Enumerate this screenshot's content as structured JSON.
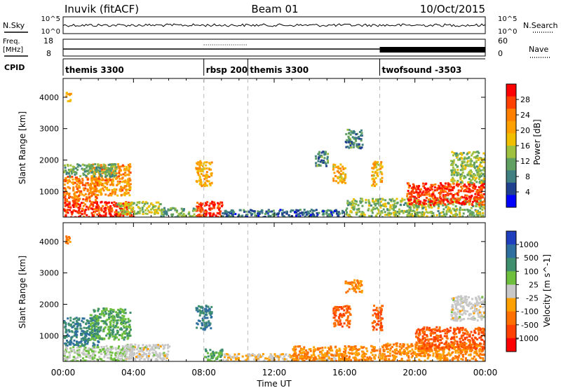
{
  "header": {
    "station": "Inuvik (fitACF)",
    "beam": "Beam 01",
    "date": "10/Oct/2015"
  },
  "top_panels": {
    "nsky_label": "N.Sky",
    "nsearch_label": "N.Search",
    "nsky_ticks": [
      "10^5",
      "10^0"
    ],
    "freq_label_top": "Freq.",
    "freq_label_unit": "[MHz]",
    "freq_ticks": [
      "18",
      "8"
    ],
    "nave_label": "Nave",
    "nave_ticks": [
      "60",
      "0"
    ],
    "cpid_label": "CPID",
    "cpid_segments": [
      {
        "name": "themis 3300",
        "start_h": 0.0,
        "end_h": 8.0
      },
      {
        "name": "rbsp 200",
        "start_h": 8.0,
        "end_h": 10.5
      },
      {
        "name": "themis 3300",
        "start_h": 10.5,
        "end_h": 18.0
      },
      {
        "name": "twofsound -3503",
        "start_h": 18.0,
        "end_h": 24.0
      }
    ]
  },
  "axes": {
    "x_ticks": [
      "00:00",
      "04:00",
      "08:00",
      "12:00",
      "16:00",
      "20:00",
      "00:00"
    ],
    "xlabel": "Time UT",
    "ylabel": "Slant Range [km]",
    "y_ticks": [
      "1000",
      "2000",
      "3000",
      "4000"
    ]
  },
  "power_colorbar": {
    "label": "Power [dB]",
    "ticks": [
      "28",
      "24",
      "20",
      "16",
      "12",
      "8",
      "4"
    ],
    "colors": [
      "#ff0000",
      "#ff4000",
      "#ff7f00",
      "#ffa000",
      "#f0c000",
      "#a0c040",
      "#60a060",
      "#408080",
      "#204090",
      "#0000ff"
    ]
  },
  "velocity_colorbar": {
    "label": "Velocity [m s^-1]",
    "ticks": [
      "1000",
      "500",
      "100",
      "25",
      "-25",
      "-100",
      "-500",
      "-1000"
    ],
    "colors": [
      "#1f3fbf",
      "#2f6f9f",
      "#3f8f6f",
      "#6fbf3f",
      "#c8c8c8",
      "#ffa000",
      "#ff7000",
      "#ff4000",
      "#ff0000"
    ]
  },
  "chart_data": {
    "type": "heatmap",
    "x_range_hours": [
      0,
      24
    ],
    "y_range_km": [
      180,
      4600
    ],
    "mode_change_hours": [
      8.0,
      10.5,
      18.0
    ],
    "power_blobs": [
      {
        "t0": 0.0,
        "t1": 4.0,
        "r0": 200,
        "r1": 700,
        "p": 28
      },
      {
        "t0": 0.0,
        "t1": 2.0,
        "r0": 700,
        "r1": 1500,
        "p": 24
      },
      {
        "t0": 1.5,
        "t1": 3.8,
        "r0": 900,
        "r1": 1900,
        "p": 22
      },
      {
        "t0": 0.0,
        "t1": 3.0,
        "r0": 1500,
        "r1": 1900,
        "p": 12
      },
      {
        "t0": 3.0,
        "t1": 5.5,
        "r0": 300,
        "r1": 700,
        "p": 16
      },
      {
        "t0": 7.5,
        "t1": 8.4,
        "r0": 1200,
        "r1": 2000,
        "p": 20
      },
      {
        "t0": 7.5,
        "t1": 9.0,
        "r0": 200,
        "r1": 700,
        "p": 28
      },
      {
        "t0": 5.5,
        "t1": 7.5,
        "r0": 200,
        "r1": 500,
        "p": 12
      },
      {
        "t0": 9.0,
        "t1": 16.0,
        "r0": 200,
        "r1": 450,
        "p": 8
      },
      {
        "t0": 16.0,
        "t1": 24.0,
        "r0": 200,
        "r1": 800,
        "p": 14
      },
      {
        "t0": 19.5,
        "t1": 24.0,
        "r0": 600,
        "r1": 1300,
        "p": 28
      },
      {
        "t0": 22.0,
        "t1": 24.0,
        "r0": 1300,
        "r1": 2300,
        "p": 14
      },
      {
        "t0": 15.3,
        "t1": 16.0,
        "r0": 1300,
        "r1": 1900,
        "p": 20
      },
      {
        "t0": 17.5,
        "t1": 18.1,
        "r0": 1200,
        "r1": 2000,
        "p": 20
      },
      {
        "t0": 14.3,
        "t1": 15.0,
        "r0": 1800,
        "r1": 2300,
        "p": 10
      },
      {
        "t0": 0.1,
        "t1": 0.4,
        "r0": 3900,
        "r1": 4200,
        "p": 20
      },
      {
        "t0": 16.0,
        "t1": 17.0,
        "r0": 2400,
        "r1": 3000,
        "p": 10
      }
    ],
    "velocity_blobs": [
      {
        "t0": 0.0,
        "t1": 2.0,
        "r0": 700,
        "r1": 1600,
        "v": 500
      },
      {
        "t0": 1.5,
        "t1": 3.8,
        "r0": 900,
        "r1": 1900,
        "v": 100
      },
      {
        "t0": 0.0,
        "t1": 4.0,
        "r0": 200,
        "r1": 700,
        "v": 25
      },
      {
        "t0": 3.5,
        "t1": 6.0,
        "r0": 200,
        "r1": 750,
        "v": 0
      },
      {
        "t0": 7.5,
        "t1": 8.4,
        "r0": 1200,
        "r1": 2000,
        "v": 500
      },
      {
        "t0": 8.0,
        "t1": 9.0,
        "r0": 200,
        "r1": 600,
        "v": 100
      },
      {
        "t0": 9.0,
        "t1": 16.0,
        "r0": 200,
        "r1": 450,
        "v": -25
      },
      {
        "t0": 13.0,
        "t1": 18.0,
        "r0": 200,
        "r1": 700,
        "v": -100
      },
      {
        "t0": 15.3,
        "t1": 16.3,
        "r0": 1300,
        "r1": 2000,
        "v": -500
      },
      {
        "t0": 17.5,
        "t1": 18.1,
        "r0": 1200,
        "r1": 2000,
        "v": -500
      },
      {
        "t0": 18.0,
        "t1": 24.0,
        "r0": 200,
        "r1": 800,
        "v": -100
      },
      {
        "t0": 20.0,
        "t1": 24.0,
        "r0": 600,
        "r1": 1300,
        "v": -500
      },
      {
        "t0": 22.0,
        "t1": 24.0,
        "r0": 1500,
        "r1": 2300,
        "v": 0
      },
      {
        "t0": 16.0,
        "t1": 17.0,
        "r0": 2400,
        "r1": 2800,
        "v": -100
      },
      {
        "t0": 0.1,
        "t1": 0.4,
        "r0": 3900,
        "r1": 4200,
        "v": -100
      }
    ]
  }
}
